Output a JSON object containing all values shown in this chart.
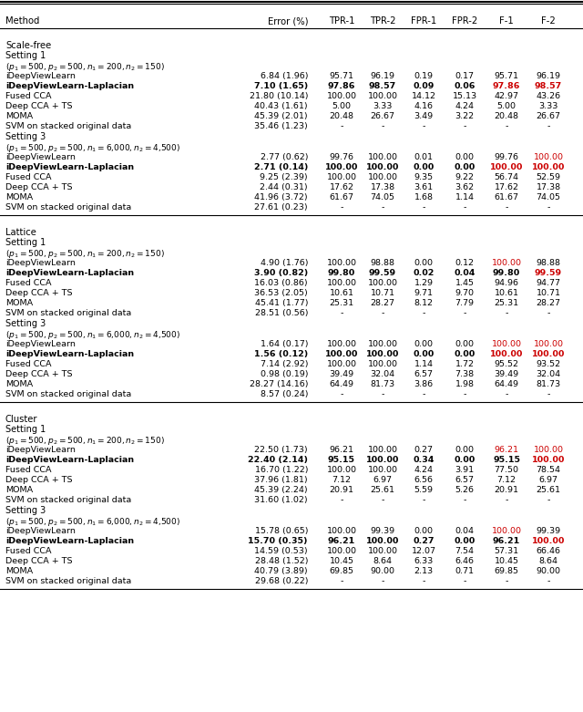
{
  "columns": [
    "Method",
    "Error (%)",
    "TPR-1",
    "TPR-2",
    "FPR-1",
    "FPR-2",
    "F-1",
    "F-2"
  ],
  "sections": [
    {
      "section_header": "Scale-free",
      "subsections": [
        {
          "setting": "Setting 1",
          "params": "$(p_1 = 500, p_2 = 500, n_1 = 200, n_2 = 150)$",
          "rows": [
            {
              "method": "iDeepViewLearn",
              "bold": false,
              "values": [
                "6.84 (1.96)",
                "95.71",
                "96.19",
                "0.19",
                "0.17",
                "95.71",
                "96.19"
              ],
              "red_cols": []
            },
            {
              "method": "iDeepViewLearn-Laplacian",
              "bold": true,
              "values": [
                "7.10 (1.65)",
                "97.86",
                "98.57",
                "0.09",
                "0.06",
                "97.86",
                "98.57"
              ],
              "red_cols": [
                6,
                7
              ]
            },
            {
              "method": "Fused CCA",
              "bold": false,
              "values": [
                "21.80 (10.14)",
                "100.00",
                "100.00",
                "14.12",
                "15.13",
                "42.97",
                "43.26"
              ],
              "red_cols": []
            },
            {
              "method": "Deep CCA + TS",
              "bold": false,
              "values": [
                "40.43 (1.61)",
                "5.00",
                "3.33",
                "4.16",
                "4.24",
                "5.00",
                "3.33"
              ],
              "red_cols": []
            },
            {
              "method": "MOMA",
              "bold": false,
              "values": [
                "45.39 (2.01)",
                "20.48",
                "26.67",
                "3.49",
                "3.22",
                "20.48",
                "26.67"
              ],
              "red_cols": []
            },
            {
              "method": "SVM on stacked original data",
              "bold": false,
              "values": [
                "35.46 (1.23)",
                "-",
                "-",
                "-",
                "-",
                "-",
                "-"
              ],
              "red_cols": []
            }
          ]
        },
        {
          "setting": "Setting 3",
          "params": "$(p_1 = 500, p_2 = 500, n_1 = 6{,}000, n_2 = 4{,}500)$",
          "rows": [
            {
              "method": "iDeepViewLearn",
              "bold": false,
              "values": [
                "2.77 (0.62)",
                "99.76",
                "100.00",
                "0.01",
                "0.00",
                "99.76",
                "100.00"
              ],
              "red_cols": [
                7
              ]
            },
            {
              "method": "iDeepViewLearn-Laplacian",
              "bold": true,
              "values": [
                "2.71 (0.14)",
                "100.00",
                "100.00",
                "0.00",
                "0.00",
                "100.00",
                "100.00"
              ],
              "red_cols": [
                6,
                7
              ]
            },
            {
              "method": "Fused CCA",
              "bold": false,
              "values": [
                "9.25 (2.39)",
                "100.00",
                "100.00",
                "9.35",
                "9.22",
                "56.74",
                "52.59"
              ],
              "red_cols": []
            },
            {
              "method": "Deep CCA + TS",
              "bold": false,
              "values": [
                "2.44 (0.31)",
                "17.62",
                "17.38",
                "3.61",
                "3.62",
                "17.62",
                "17.38"
              ],
              "red_cols": []
            },
            {
              "method": "MOMA",
              "bold": false,
              "values": [
                "41.96 (3.72)",
                "61.67",
                "74.05",
                "1.68",
                "1.14",
                "61.67",
                "74.05"
              ],
              "red_cols": []
            },
            {
              "method": "SVM on stacked original data",
              "bold": false,
              "values": [
                "27.61 (0.23)",
                "-",
                "-",
                "-",
                "-",
                "-",
                "-"
              ],
              "red_cols": []
            }
          ]
        }
      ]
    },
    {
      "section_header": "Lattice",
      "subsections": [
        {
          "setting": "Setting 1",
          "params": "$(p_1 = 500, p_2 = 500, n_1 = 200, n_2 = 150)$",
          "rows": [
            {
              "method": "iDeepViewLearn",
              "bold": false,
              "values": [
                "4.90 (1.76)",
                "100.00",
                "98.88",
                "0.00",
                "0.12",
                "100.00",
                "98.88"
              ],
              "red_cols": [
                6
              ]
            },
            {
              "method": "iDeepViewLearn-Laplacian",
              "bold": true,
              "values": [
                "3.90 (0.82)",
                "99.80",
                "99.59",
                "0.02",
                "0.04",
                "99.80",
                "99.59"
              ],
              "red_cols": [
                7
              ]
            },
            {
              "method": "Fused CCA",
              "bold": false,
              "values": [
                "16.03 (0.86)",
                "100.00",
                "100.00",
                "1.29",
                "1.45",
                "94.96",
                "94.77"
              ],
              "red_cols": []
            },
            {
              "method": "Deep CCA + TS",
              "bold": false,
              "values": [
                "36.53 (2.05)",
                "10.61",
                "10.71",
                "9.71",
                "9.70",
                "10.61",
                "10.71"
              ],
              "red_cols": []
            },
            {
              "method": "MOMA",
              "bold": false,
              "values": [
                "45.41 (1.77)",
                "25.31",
                "28.27",
                "8.12",
                "7.79",
                "25.31",
                "28.27"
              ],
              "red_cols": []
            },
            {
              "method": "SVM on stacked original data",
              "bold": false,
              "values": [
                "28.51 (0.56)",
                "-",
                "-",
                "-",
                "-",
                "-",
                "-"
              ],
              "red_cols": []
            }
          ]
        },
        {
          "setting": "Setting 3",
          "params": "$(p_1 = 500, p_2 = 500, n_1 = 6{,}000, n_2 = 4{,}500)$",
          "rows": [
            {
              "method": "iDeepViewLearn",
              "bold": false,
              "values": [
                "1.64 (0.17)",
                "100.00",
                "100.00",
                "0.00",
                "0.00",
                "100.00",
                "100.00"
              ],
              "red_cols": [
                6,
                7
              ]
            },
            {
              "method": "iDeepViewLearn-Laplacian",
              "bold": true,
              "values": [
                "1.56 (0.12)",
                "100.00",
                "100.00",
                "0.00",
                "0.00",
                "100.00",
                "100.00"
              ],
              "red_cols": [
                6,
                7
              ]
            },
            {
              "method": "Fused CCA",
              "bold": false,
              "values": [
                "7.14 (2.92)",
                "100.00",
                "100.00",
                "1.14",
                "1.72",
                "95.52",
                "93.52"
              ],
              "red_cols": []
            },
            {
              "method": "Deep CCA + TS",
              "bold": false,
              "values": [
                "0.98 (0.19)",
                "39.49",
                "32.04",
                "6.57",
                "7.38",
                "39.49",
                "32.04"
              ],
              "red_cols": []
            },
            {
              "method": "MOMA",
              "bold": false,
              "values": [
                "28.27 (14.16)",
                "64.49",
                "81.73",
                "3.86",
                "1.98",
                "64.49",
                "81.73"
              ],
              "red_cols": []
            },
            {
              "method": "SVM on stacked original data",
              "bold": false,
              "values": [
                "8.57 (0.24)",
                "-",
                "-",
                "-",
                "-",
                "-",
                "-"
              ],
              "red_cols": []
            }
          ]
        }
      ]
    },
    {
      "section_header": "Cluster",
      "subsections": [
        {
          "setting": "Setting 1",
          "params": "$(p_1 = 500, p_2 = 500, n_1 = 200, n_2 = 150)$",
          "rows": [
            {
              "method": "iDeepViewLearn",
              "bold": false,
              "values": [
                "22.50 (1.73)",
                "96.21",
                "100.00",
                "0.27",
                "0.00",
                "96.21",
                "100.00"
              ],
              "red_cols": [
                6,
                7
              ]
            },
            {
              "method": "iDeepViewLearn-Laplacian",
              "bold": true,
              "values": [
                "22.40 (2.14)",
                "95.15",
                "100.00",
                "0.34",
                "0.00",
                "95.15",
                "100.00"
              ],
              "red_cols": [
                7
              ]
            },
            {
              "method": "Fused CCA",
              "bold": false,
              "values": [
                "16.70 (1.22)",
                "100.00",
                "100.00",
                "4.24",
                "3.91",
                "77.50",
                "78.54"
              ],
              "red_cols": []
            },
            {
              "method": "Deep CCA + TS",
              "bold": false,
              "values": [
                "37.96 (1.81)",
                "7.12",
                "6.97",
                "6.56",
                "6.57",
                "7.12",
                "6.97"
              ],
              "red_cols": []
            },
            {
              "method": "MOMA",
              "bold": false,
              "values": [
                "45.39 (2.24)",
                "20.91",
                "25.61",
                "5.59",
                "5.26",
                "20.91",
                "25.61"
              ],
              "red_cols": []
            },
            {
              "method": "SVM on stacked original data",
              "bold": false,
              "values": [
                "31.60 (1.02)",
                "-",
                "-",
                "-",
                "-",
                "-",
                "-"
              ],
              "red_cols": []
            }
          ]
        },
        {
          "setting": "Setting 3",
          "params": "$(p_1 = 500, p_2 = 500, n_1 = 6{,}000, n_2 = 4{,}500)$",
          "rows": [
            {
              "method": "iDeepViewLearn",
              "bold": false,
              "values": [
                "15.78 (0.65)",
                "100.00",
                "99.39",
                "0.00",
                "0.04",
                "100.00",
                "99.39"
              ],
              "red_cols": [
                6
              ]
            },
            {
              "method": "iDeepViewLearn-Laplacian",
              "bold": true,
              "values": [
                "15.70 (0.35)",
                "96.21",
                "100.00",
                "0.27",
                "0.00",
                "96.21",
                "100.00"
              ],
              "red_cols": [
                7
              ]
            },
            {
              "method": "Fused CCA",
              "bold": false,
              "values": [
                "14.59 (0.53)",
                "100.00",
                "100.00",
                "12.07",
                "7.54",
                "57.31",
                "66.46"
              ],
              "red_cols": []
            },
            {
              "method": "Deep CCA + TS",
              "bold": false,
              "values": [
                "28.48 (1.52)",
                "10.45",
                "8.64",
                "6.33",
                "6.46",
                "10.45",
                "8.64"
              ],
              "red_cols": []
            },
            {
              "method": "MOMA",
              "bold": false,
              "values": [
                "40.79 (3.89)",
                "69.85",
                "90.00",
                "2.13",
                "0.71",
                "69.85",
                "90.00"
              ],
              "red_cols": []
            },
            {
              "method": "SVM on stacked original data",
              "bold": false,
              "values": [
                "29.68 (0.22)",
                "-",
                "-",
                "-",
                "-",
                "-",
                "-"
              ],
              "red_cols": []
            }
          ]
        }
      ]
    }
  ],
  "red_color": "#CC0000",
  "normal_color": "#000000"
}
